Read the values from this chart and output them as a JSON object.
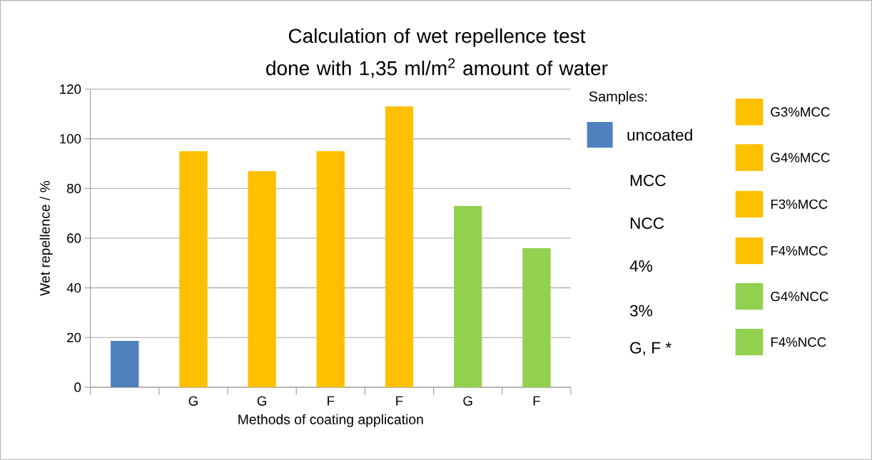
{
  "chart_data": {
    "type": "bar",
    "title": "Calculation of wet repellence test done with 1,35 ml/m$^{2}$ amount of water",
    "xlabel": "Methods of coating application",
    "ylabel": "Wet repellence / %",
    "categories": [
      null,
      "G",
      "G",
      "F",
      "F",
      "G",
      "F"
    ],
    "series": [
      {
        "name": "uncoated",
        "color": "#4f81bd",
        "values": [
          18.7,
          null,
          null,
          null,
          null,
          null,
          null
        ]
      },
      {
        "name": "G3%MCC",
        "color": "#ffc000",
        "values": [
          null,
          95,
          null,
          null,
          null,
          null,
          null
        ]
      },
      {
        "name": "G4%MCC",
        "color": "#ffc000",
        "values": [
          null,
          null,
          87,
          null,
          null,
          null,
          null
        ]
      },
      {
        "name": "F3%MCC",
        "color": "#ffc000",
        "values": [
          null,
          null,
          null,
          95,
          null,
          null,
          null
        ]
      },
      {
        "name": "F4%MCC",
        "color": "#ffc000",
        "values": [
          null,
          null,
          null,
          null,
          113,
          null,
          null
        ]
      },
      {
        "name": "G4%NCC",
        "color": "#92d050",
        "values": [
          null,
          null,
          null,
          null,
          null,
          73,
          null
        ]
      },
      {
        "name": "F4%NCC",
        "color": "#92d050",
        "values": [
          null,
          null,
          null,
          null,
          null,
          null,
          56
        ]
      }
    ],
    "ylim": [
      0,
      120
    ],
    "yticks": [
      0,
      20,
      40,
      60,
      80,
      100,
      120
    ],
    "grid": "y",
    "legend": "right",
    "legend_title": "Samples:",
    "annotations": [
      "MCC",
      "NCC",
      "4%",
      "3%",
      "G, F *"
    ]
  }
}
